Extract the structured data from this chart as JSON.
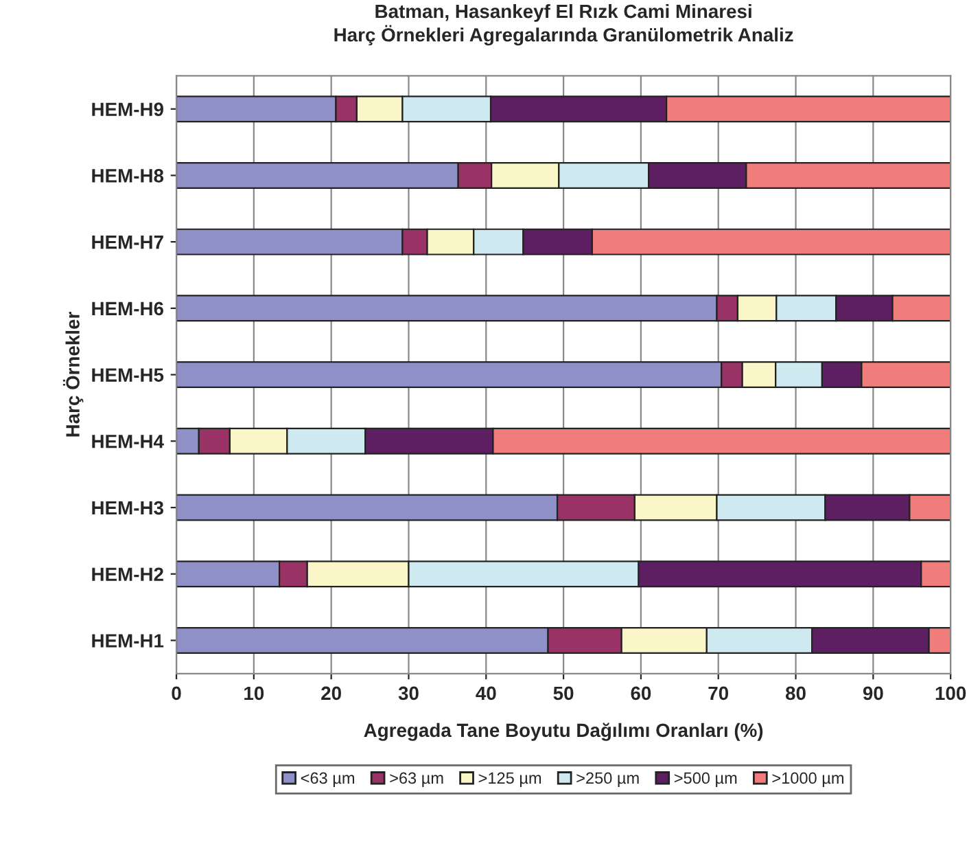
{
  "chart_data": {
    "type": "bar",
    "orientation": "horizontal",
    "stacked": true,
    "title": "Batman, Hasankeyf El Rızk Cami Minaresi\nHarç Örnekleri Agregalarında Granülometrik Analiz",
    "xlabel": "Agregada Tane Boyutu Dağılımı Oranları (%)",
    "ylabel": "Harç Örnekler",
    "categories": [
      "HEM-H9",
      "HEM-H8",
      "HEM-H7",
      "HEM-H6",
      "HEM-H5",
      "HEM-H4",
      "HEM-H3",
      "HEM-H2",
      "HEM-H1"
    ],
    "series": [
      {
        "name": "<63 µm",
        "color": "#9090c8",
        "values": [
          20.6,
          36.4,
          29.2,
          69.8,
          70.4,
          2.9,
          49.2,
          13.3,
          48.0
        ]
      },
      {
        "name": ">63 µm",
        "color": "#993366",
        "values": [
          2.7,
          4.3,
          3.2,
          2.7,
          2.7,
          4.0,
          10.0,
          3.6,
          9.5
        ]
      },
      {
        "name": ">125 µm",
        "color": "#fbf6c8",
        "values": [
          5.9,
          8.7,
          6.0,
          5.0,
          4.3,
          7.4,
          10.6,
          13.1,
          11.0
        ]
      },
      {
        "name": ">250 µm",
        "color": "#cfe9f0",
        "values": [
          11.4,
          11.6,
          6.4,
          7.7,
          6.0,
          10.1,
          14.0,
          29.7,
          13.6
        ]
      },
      {
        "name": ">500 µm",
        "color": "#5e1f62",
        "values": [
          22.7,
          12.6,
          8.9,
          7.3,
          5.1,
          16.5,
          10.9,
          36.5,
          15.1
        ]
      },
      {
        "name": ">1000 µm",
        "color": "#f07c7c",
        "values": [
          36.7,
          26.4,
          46.3,
          7.5,
          11.5,
          59.1,
          5.3,
          3.8,
          2.8
        ]
      }
    ],
    "xlim": [
      0,
      100
    ],
    "xticks": [
      0,
      10,
      20,
      30,
      40,
      50,
      60,
      70,
      80,
      90,
      100
    ],
    "grid": "x",
    "legend": "bottom"
  }
}
